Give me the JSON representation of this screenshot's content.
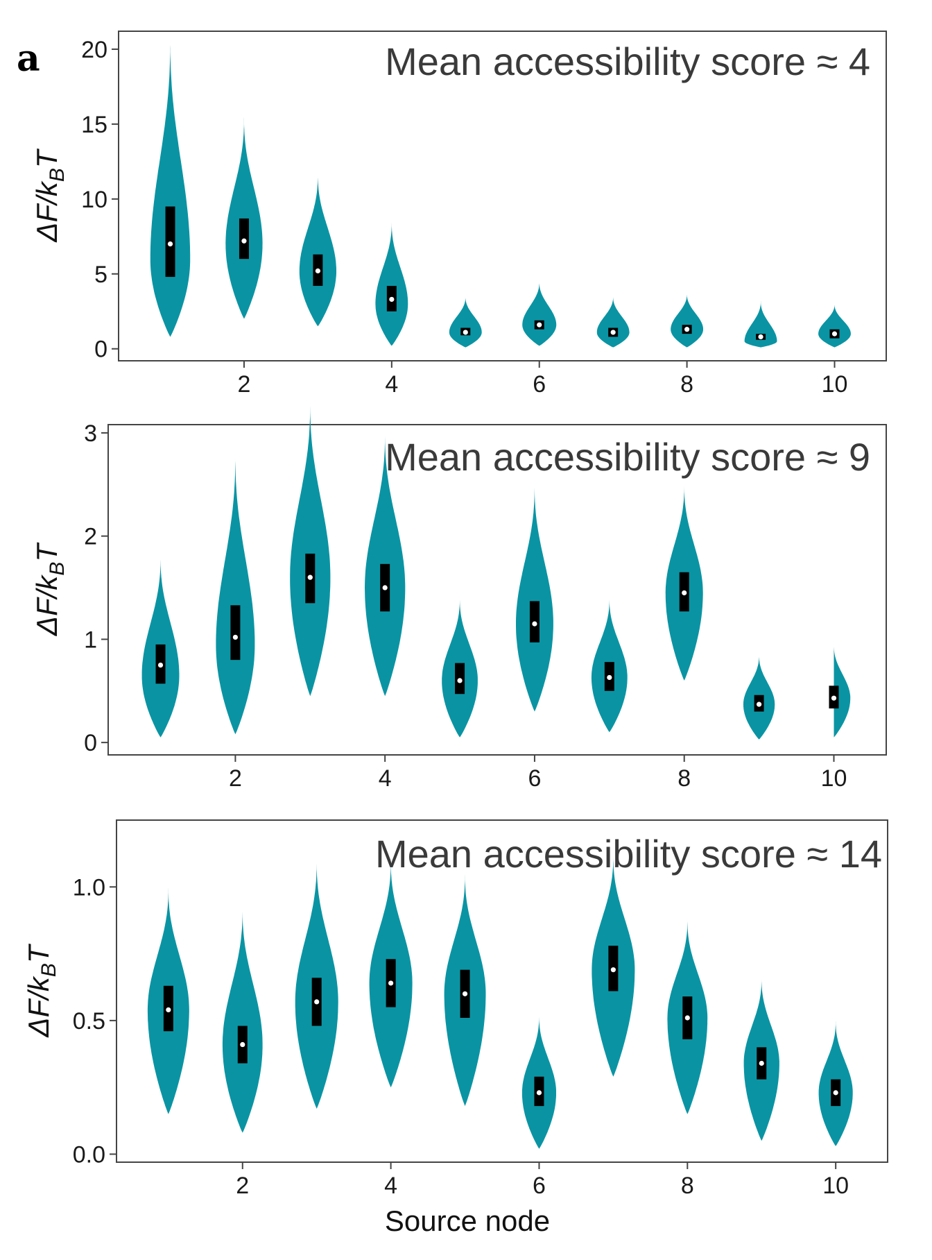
{
  "figure": {
    "panel_label": "a"
  },
  "colors": {
    "violin": "#0a94a3",
    "box": "#000000",
    "median": "#ffffff",
    "frame": "#444444"
  },
  "chart_data": [
    {
      "type": "violin",
      "title": "Mean accessibility score ≈ 4",
      "xlabel": "",
      "ylabel": "ΔF/k_BT",
      "ylabel_parts": {
        "main": "ΔF/k",
        "sub": "B",
        "tail": "T"
      },
      "ylim": [
        -0.8,
        21.2
      ],
      "xlim": [
        0.3,
        10.7
      ],
      "yticks": [
        0,
        5,
        10,
        15,
        20
      ],
      "ytick_labels": [
        "0",
        "5",
        "10",
        "15",
        "20"
      ],
      "xticks": [
        2,
        4,
        6,
        8,
        10
      ],
      "xtick_labels": [
        "2",
        "4",
        "6",
        "8",
        "10"
      ],
      "nodes": [
        {
          "x": 1,
          "median": 7.0,
          "q1": 4.8,
          "q3": 9.5,
          "min": 0.8,
          "max": 20.8,
          "mode": 6.0,
          "width": 0.27
        },
        {
          "x": 2,
          "median": 7.2,
          "q1": 6.0,
          "q3": 8.7,
          "min": 2.0,
          "max": 15.5,
          "mode": 7.0,
          "width": 0.25
        },
        {
          "x": 3,
          "median": 5.2,
          "q1": 4.2,
          "q3": 6.3,
          "min": 1.5,
          "max": 11.7,
          "mode": 5.2,
          "width": 0.25
        },
        {
          "x": 4,
          "median": 3.3,
          "q1": 2.5,
          "q3": 4.2,
          "min": 0.2,
          "max": 8.5,
          "mode": 3.0,
          "width": 0.22
        },
        {
          "x": 5,
          "median": 1.1,
          "q1": 0.9,
          "q3": 1.4,
          "min": 0.1,
          "max": 3.5,
          "mode": 1.1,
          "width": 0.22
        },
        {
          "x": 6,
          "median": 1.6,
          "q1": 1.3,
          "q3": 1.9,
          "min": 0.2,
          "max": 4.5,
          "mode": 1.6,
          "width": 0.23
        },
        {
          "x": 7,
          "median": 1.1,
          "q1": 0.8,
          "q3": 1.4,
          "min": 0.1,
          "max": 3.5,
          "mode": 1.1,
          "width": 0.22
        },
        {
          "x": 8,
          "median": 1.3,
          "q1": 1.0,
          "q3": 1.6,
          "min": 0.1,
          "max": 3.7,
          "mode": 1.3,
          "width": 0.22
        },
        {
          "x": 9,
          "median": 0.8,
          "q1": 0.6,
          "q3": 1.0,
          "min": 0.1,
          "max": 3.2,
          "mode": 0.5,
          "width": 0.22
        },
        {
          "x": 10,
          "median": 1.0,
          "q1": 0.7,
          "q3": 1.3,
          "min": 0.1,
          "max": 3.0,
          "mode": 1.0,
          "width": 0.22
        }
      ]
    },
    {
      "type": "violin",
      "title": "Mean accessibility score ≈ 9",
      "xlabel": "",
      "ylabel": "ΔF/k_BT",
      "ylabel_parts": {
        "main": "ΔF/k",
        "sub": "B",
        "tail": "T"
      },
      "ylim": [
        -0.12,
        3.08
      ],
      "xlim": [
        0.3,
        10.7
      ],
      "yticks": [
        0,
        1,
        2,
        3
      ],
      "ytick_labels": [
        "0",
        "1",
        "2",
        "3"
      ],
      "xticks": [
        2,
        4,
        6,
        8,
        10
      ],
      "xtick_labels": [
        "2",
        "4",
        "6",
        "8",
        "10"
      ],
      "nodes": [
        {
          "x": 1,
          "median": 0.75,
          "q1": 0.57,
          "q3": 0.95,
          "min": 0.05,
          "max": 1.8,
          "mode": 0.65,
          "width": 0.25
        },
        {
          "x": 2,
          "median": 1.02,
          "q1": 0.8,
          "q3": 1.33,
          "min": 0.08,
          "max": 2.8,
          "mode": 0.95,
          "width": 0.26
        },
        {
          "x": 3,
          "median": 1.6,
          "q1": 1.35,
          "q3": 1.83,
          "min": 0.45,
          "max": 3.3,
          "mode": 1.6,
          "width": 0.27
        },
        {
          "x": 4,
          "median": 1.5,
          "q1": 1.27,
          "q3": 1.73,
          "min": 0.45,
          "max": 3.0,
          "mode": 1.5,
          "width": 0.27
        },
        {
          "x": 5,
          "median": 0.6,
          "q1": 0.47,
          "q3": 0.77,
          "min": 0.05,
          "max": 1.4,
          "mode": 0.6,
          "width": 0.24
        },
        {
          "x": 6,
          "median": 1.15,
          "q1": 0.97,
          "q3": 1.37,
          "min": 0.3,
          "max": 2.5,
          "mode": 1.15,
          "width": 0.25
        },
        {
          "x": 7,
          "median": 0.63,
          "q1": 0.5,
          "q3": 0.78,
          "min": 0.1,
          "max": 1.4,
          "mode": 0.63,
          "width": 0.24
        },
        {
          "x": 8,
          "median": 1.45,
          "q1": 1.27,
          "q3": 1.65,
          "min": 0.6,
          "max": 2.5,
          "mode": 1.45,
          "width": 0.25
        },
        {
          "x": 9,
          "median": 0.37,
          "q1": 0.3,
          "q3": 0.46,
          "min": 0.03,
          "max": 0.85,
          "mode": 0.37,
          "width": 0.21
        },
        {
          "x": 10,
          "median": 0.43,
          "q1": 0.33,
          "q3": 0.55,
          "min": 0.05,
          "max": 0.95,
          "mode": 0.43,
          "width": 0.22
        }
      ]
    },
    {
      "type": "violin",
      "title": "Mean accessibility score ≈ 14",
      "xlabel": "Source node",
      "ylabel": "ΔF/k_BT",
      "ylabel_parts": {
        "main": "ΔF/k",
        "sub": "B",
        "tail": "T"
      },
      "ylim": [
        -0.03,
        1.25
      ],
      "xlim": [
        0.3,
        10.7
      ],
      "yticks": [
        0.0,
        0.5,
        1.0
      ],
      "ytick_labels": [
        "0.0",
        "0.5",
        "1.0"
      ],
      "xticks": [
        2,
        4,
        6,
        8,
        10
      ],
      "xtick_labels": [
        "2",
        "4",
        "6",
        "8",
        "10"
      ],
      "nodes": [
        {
          "x": 1,
          "median": 0.54,
          "q1": 0.46,
          "q3": 0.63,
          "min": 0.15,
          "max": 1.0,
          "mode": 0.54,
          "width": 0.28
        },
        {
          "x": 2,
          "median": 0.41,
          "q1": 0.34,
          "q3": 0.48,
          "min": 0.08,
          "max": 0.92,
          "mode": 0.41,
          "width": 0.27
        },
        {
          "x": 3,
          "median": 0.57,
          "q1": 0.48,
          "q3": 0.66,
          "min": 0.17,
          "max": 1.1,
          "mode": 0.57,
          "width": 0.29
        },
        {
          "x": 4,
          "median": 0.64,
          "q1": 0.55,
          "q3": 0.73,
          "min": 0.25,
          "max": 1.1,
          "mode": 0.64,
          "width": 0.29
        },
        {
          "x": 5,
          "median": 0.6,
          "q1": 0.51,
          "q3": 0.69,
          "min": 0.18,
          "max": 1.05,
          "mode": 0.6,
          "width": 0.28
        },
        {
          "x": 6,
          "median": 0.23,
          "q1": 0.18,
          "q3": 0.29,
          "min": 0.02,
          "max": 0.52,
          "mode": 0.23,
          "width": 0.23
        },
        {
          "x": 7,
          "median": 0.69,
          "q1": 0.61,
          "q3": 0.78,
          "min": 0.29,
          "max": 1.12,
          "mode": 0.69,
          "width": 0.29
        },
        {
          "x": 8,
          "median": 0.51,
          "q1": 0.43,
          "q3": 0.59,
          "min": 0.15,
          "max": 0.88,
          "mode": 0.51,
          "width": 0.27
        },
        {
          "x": 9,
          "median": 0.34,
          "q1": 0.28,
          "q3": 0.4,
          "min": 0.05,
          "max": 0.66,
          "mode": 0.34,
          "width": 0.24
        },
        {
          "x": 10,
          "median": 0.23,
          "q1": 0.18,
          "q3": 0.28,
          "min": 0.03,
          "max": 0.5,
          "mode": 0.23,
          "width": 0.23
        }
      ]
    }
  ]
}
